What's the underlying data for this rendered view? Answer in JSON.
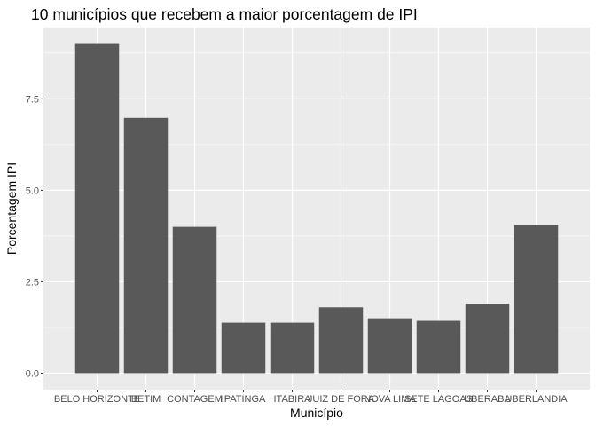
{
  "chart_data": {
    "type": "bar",
    "title": "10 municípios que recebem a maior porcentagem de IPI",
    "xlabel": "Município",
    "ylabel": "Porcentagem IPI",
    "categories": [
      "BELO HORIZONTE",
      "BETIM",
      "CONTAGEM",
      "IPATINGA",
      "ITABIRA",
      "JUIZ DE FORA",
      "NOVA LIMA",
      "SETE LAGOAS",
      "UBERABA",
      "UBERLANDIA"
    ],
    "values": [
      9.0,
      6.98,
      4.0,
      1.38,
      1.38,
      1.8,
      1.5,
      1.43,
      1.9,
      4.05
    ],
    "yticks": [
      0.0,
      2.5,
      5.0,
      7.5
    ],
    "ytick_labels": [
      "0.0",
      "2.5",
      "5.0",
      "7.5"
    ],
    "ylim": [
      -0.45,
      9.45
    ],
    "grid": true,
    "legend": "none",
    "colors": {
      "bar": "#595959",
      "panel_background": "#ebebeb",
      "grid_major": "#ffffff",
      "tick_label": "#4d4d4d",
      "tick_mark": "#333333"
    }
  }
}
